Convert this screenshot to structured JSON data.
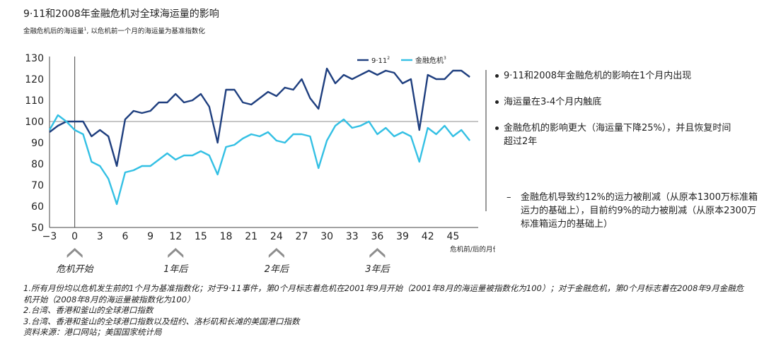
{
  "title": "9·11和2008年金融危机对全球海运量的影响",
  "subtitle": "金融危机后的海运量",
  "subtitle_sup": "1",
  "subtitle_rest": ", 以危机前一个月的海运量为基准指数化",
  "chart_data": {
    "type": "line",
    "xlabel": "危机前/后的月份",
    "ylabel": "",
    "xlim": [
      -3,
      48
    ],
    "ylim": [
      50,
      130
    ],
    "x_ticks": [
      -3,
      0,
      3,
      6,
      9,
      12,
      15,
      18,
      21,
      24,
      27,
      30,
      33,
      36,
      39,
      42,
      45
    ],
    "y_ticks": [
      50,
      60,
      70,
      80,
      90,
      100,
      110,
      120,
      130
    ],
    "reference_line": 100,
    "legend_position": "top-right",
    "x": [
      -3,
      -2,
      -1,
      0,
      1,
      2,
      3,
      4,
      5,
      6,
      7,
      8,
      9,
      10,
      11,
      12,
      13,
      14,
      15,
      16,
      17,
      18,
      19,
      20,
      21,
      22,
      23,
      24,
      25,
      26,
      27,
      28,
      29,
      30,
      31,
      32,
      33,
      34,
      35,
      36,
      37,
      38,
      39,
      40,
      41,
      42,
      43,
      44,
      45,
      46,
      47
    ],
    "series": [
      {
        "name": "9·11",
        "name_sup": "2",
        "color": "#1f3f7f",
        "values": [
          95,
          98,
          100,
          100,
          100,
          93,
          96,
          93,
          79,
          101,
          105,
          104,
          105,
          109,
          109,
          113,
          109,
          110,
          113,
          107,
          90,
          115,
          115,
          109,
          108,
          111,
          114,
          112,
          116,
          115,
          120,
          111,
          106,
          125,
          118,
          122,
          120,
          122,
          124,
          122,
          124,
          123,
          118,
          120,
          96,
          122,
          120,
          120,
          124,
          124,
          121
        ]
      },
      {
        "name": "金融危机",
        "name_sup": "3",
        "color": "#34c0e4",
        "values": [
          96,
          103,
          100,
          96,
          94,
          81,
          79,
          73,
          61,
          76,
          77,
          79,
          79,
          82,
          85,
          82,
          84,
          84,
          86,
          84,
          75,
          88,
          89,
          92,
          94,
          93,
          95,
          91,
          90,
          94,
          94,
          93,
          78,
          91,
          98,
          101,
          97,
          98,
          100,
          94,
          97,
          93,
          95,
          93,
          81,
          97,
          94,
          98,
          93,
          96,
          91
        ]
      }
    ],
    "annotations": [
      {
        "x": 0,
        "label": "危机开始"
      },
      {
        "x": 12,
        "label": "1年后"
      },
      {
        "x": 24,
        "label": "2年后"
      },
      {
        "x": 36,
        "label": "3年后"
      }
    ]
  },
  "bullets": [
    "9·11和2008年金融危机的影响在1个月内出现",
    "海运量在3-4个月内触底",
    "金融危机的影响更大（海运量下降25%），并且恢复时间超过2年"
  ],
  "subbullet_dash": "–",
  "subbullet": "金融危机导致约12%的运力被削减（从原本1300万标准箱运力的基础上），目前约9%的动力被削减（从原本2300万标准箱运力的基础上）",
  "notes": [
    "1.所有月份均以危机发生前的1个月为基准指数化；对于9·11事件，第0个月标志着危机在2001年9月开始（2001年8月的海运量被指数化为100）；对于金融危机，第0个月标志着在2008年9月金融危机开始（2008年8月的海运量被指数化为100）",
    "2.台湾、香港和釜山的全球港口指数",
    "3.台湾、香港和釜山的全球港口指数以及纽约、洛杉矶和长滩的美国港口指数",
    "资料来源：港口网站；美国国家统计局"
  ]
}
